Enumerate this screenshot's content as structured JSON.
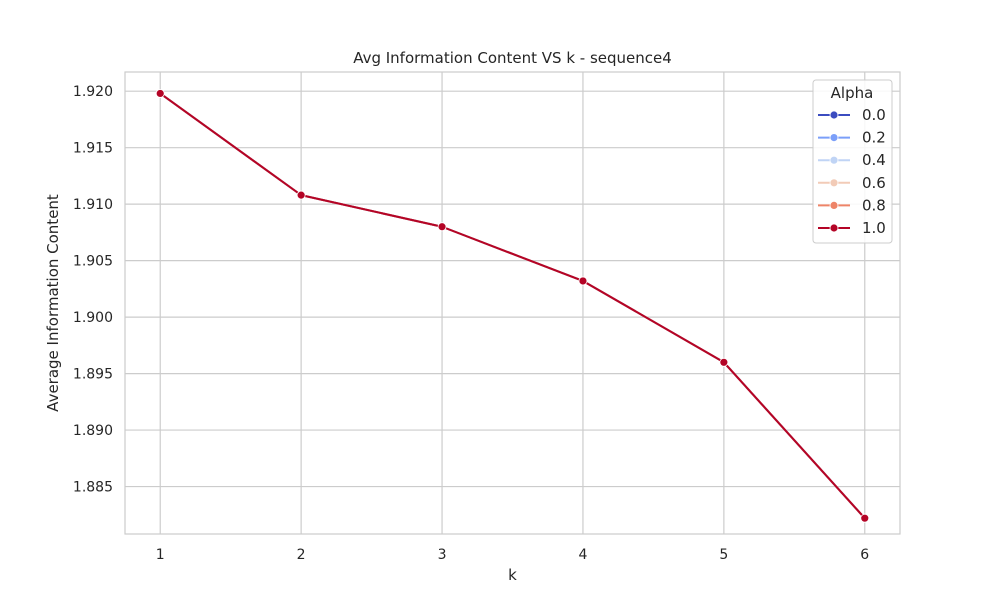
{
  "chart_data": {
    "type": "line",
    "title": "Avg Information Content VS k - sequence4",
    "xlabel": "k",
    "ylabel": "Average Information Content",
    "x": [
      1,
      2,
      3,
      4,
      5,
      6
    ],
    "xticks": [
      "1",
      "2",
      "3",
      "4",
      "5",
      "6"
    ],
    "xlim": [
      0.75,
      6.25
    ],
    "yticks": [
      "1.885",
      "1.890",
      "1.895",
      "1.900",
      "1.905",
      "1.910",
      "1.915",
      "1.920"
    ],
    "ylim": [
      1.8808,
      1.9217
    ],
    "grid": true,
    "legend": {
      "title": "Alpha",
      "placement": "top-right"
    },
    "series": [
      {
        "name": "0.0",
        "color": "#3b4cc0",
        "values": [
          1.9198,
          1.9108,
          1.908,
          1.9032,
          1.896,
          1.8822
        ]
      },
      {
        "name": "0.2",
        "color": "#7b9ff9",
        "values": [
          1.9198,
          1.9108,
          1.908,
          1.9032,
          1.896,
          1.8822
        ]
      },
      {
        "name": "0.4",
        "color": "#c0d4f5",
        "values": [
          1.9198,
          1.9108,
          1.908,
          1.9032,
          1.896,
          1.8822
        ]
      },
      {
        "name": "0.6",
        "color": "#f2cbb7",
        "values": [
          1.9198,
          1.9108,
          1.908,
          1.9032,
          1.896,
          1.8822
        ]
      },
      {
        "name": "0.8",
        "color": "#ee8468",
        "values": [
          1.9198,
          1.9108,
          1.908,
          1.9032,
          1.896,
          1.8822
        ]
      },
      {
        "name": "1.0",
        "color": "#b40426",
        "values": [
          1.9198,
          1.9108,
          1.908,
          1.9032,
          1.896,
          1.8822
        ]
      }
    ]
  }
}
